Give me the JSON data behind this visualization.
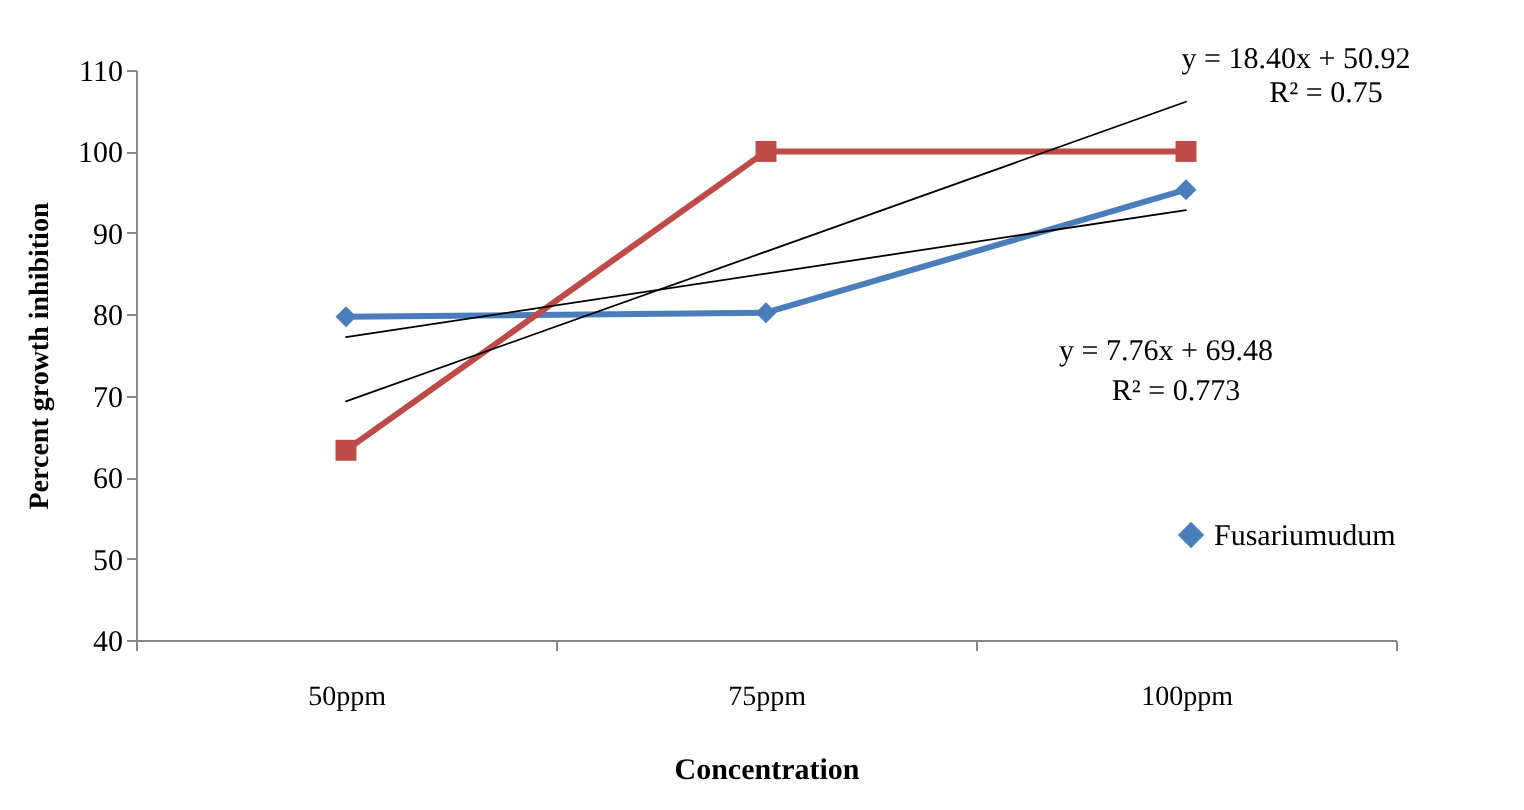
{
  "chart_data": {
    "type": "line",
    "xlabel": "Concentration",
    "ylabel": "Percent growth inhibition",
    "categories": [
      "50ppm",
      "75ppm",
      "100ppm"
    ],
    "series": [
      {
        "name": "Fusariumudum",
        "color": "#4a7ebb",
        "values": [
          79.7,
          80.2,
          95.3
        ],
        "marker": "diamond"
      },
      {
        "color": "#be4b48",
        "values": [
          63.3,
          100,
          100
        ],
        "marker": "square"
      },
      {
        "type": "line",
        "color": "#000000",
        "x": [
          "50ppm",
          "75ppm",
          "100ppm"
        ],
        "values": [
          69.3,
          87.7,
          106.1
        ],
        "marker": "none"
      },
      {
        "type": "line",
        "color": "#000000",
        "x": [
          "50ppm",
          "75ppm",
          "100ppm"
        ],
        "values": [
          77.2,
          85.0,
          92.8
        ],
        "marker": "none"
      }
    ],
    "ylim": [
      40,
      110
    ],
    "yticks": [
      40,
      50,
      60,
      70,
      80,
      90,
      100,
      110
    ],
    "grid": false,
    "legend": "right",
    "annotations": [
      "y = 18.40x + 50.92",
      "R² = 0.75",
      "y = 7.76x + 69.48",
      "R² = 0.773"
    ]
  }
}
